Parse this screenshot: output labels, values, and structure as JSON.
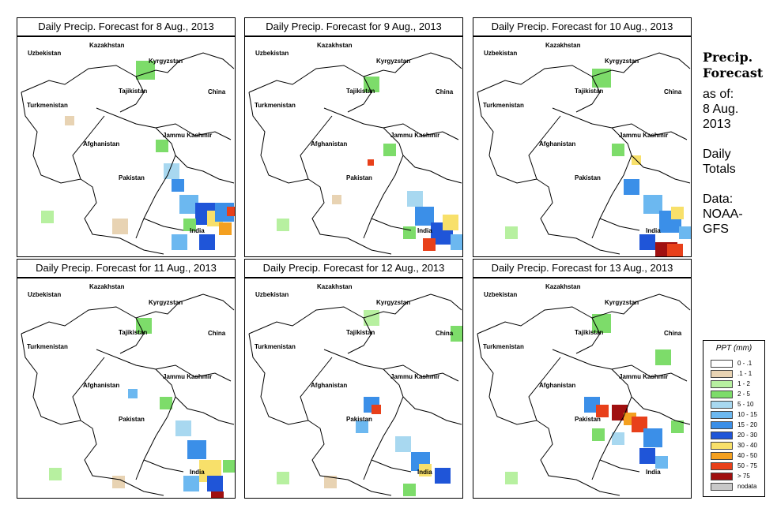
{
  "panels": [
    {
      "title": "Daily Precip. Forecast for  8 Aug., 2013"
    },
    {
      "title": "Daily Precip. Forecast for  9 Aug., 2013"
    },
    {
      "title": "Daily Precip. Forecast for  10 Aug., 2013"
    },
    {
      "title": "Daily Precip. Forecast for  11 Aug., 2013"
    },
    {
      "title": "Daily Precip. Forecast for  12 Aug., 2013"
    },
    {
      "title": "Daily Precip. Forecast for  13 Aug., 2013"
    }
  ],
  "map_labels": {
    "kazakhstan": "Kazakhstan",
    "uzbekistan": "Uzbekistan",
    "kyrgyzstan": "Kyrgyzstan",
    "tajikistan": "Tajikistan",
    "turkmenistan": "Turkmenistan",
    "china": "China",
    "afghanistan": "Afghanistan",
    "jammu_kashmir": "Jammu Kashmir",
    "pakistan": "Pakistan",
    "india": "India"
  },
  "sidebar": {
    "title_line1": "Precip.",
    "title_line2": "Forecast",
    "asof_line1": "as of:",
    "asof_line2": "8 Aug.",
    "asof_line3": "2013",
    "totals_line1": "Daily",
    "totals_line2": "Totals",
    "data_line1": "Data:",
    "data_line2": "NOAA-",
    "data_line3": "GFS"
  },
  "legend": {
    "title": "PPT (mm)",
    "items": [
      {
        "label": "0 - .1",
        "color": "#ffffff"
      },
      {
        "label": ".1 - 1",
        "color": "#e8d3b3"
      },
      {
        "label": "1 - 2",
        "color": "#b7f0a0"
      },
      {
        "label": "2 - 5",
        "color": "#7ddc6a"
      },
      {
        "label": "5 - 10",
        "color": "#a8d8f0"
      },
      {
        "label": "10 - 15",
        "color": "#6cb8f0"
      },
      {
        "label": "15 - 20",
        "color": "#3b8fe8"
      },
      {
        "label": "20 - 30",
        "color": "#1f55d8"
      },
      {
        "label": "30 - 40",
        "color": "#f8e06a"
      },
      {
        "label": "40 - 50",
        "color": "#f4a020"
      },
      {
        "label": "50 - 75",
        "color": "#e8401a"
      },
      {
        "label": "> 75",
        "color": "#a01010"
      },
      {
        "label": "nodata",
        "color": "#c8c8c8"
      }
    ]
  }
}
